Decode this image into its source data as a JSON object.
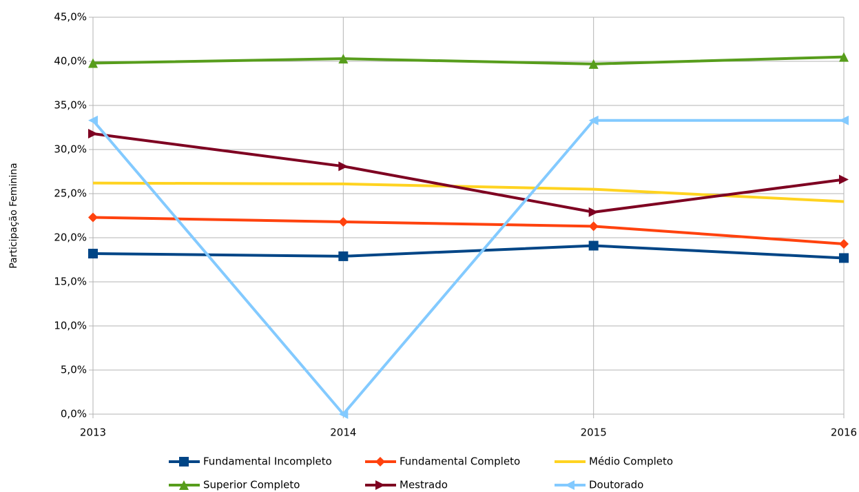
{
  "chart_data": {
    "type": "line",
    "y_label": "Participação Feminina",
    "x": [
      2013,
      2014,
      2015,
      2016
    ],
    "xlim": [
      2013,
      2016
    ],
    "xticks": [
      2013,
      2014,
      2015,
      2016
    ],
    "ylim": [
      0,
      45
    ],
    "yticks": [
      {
        "value": 0,
        "label": "0,0%"
      },
      {
        "value": 5,
        "label": "5,0%"
      },
      {
        "value": 10,
        "label": "10,0%"
      },
      {
        "value": 15,
        "label": "15,0%"
      },
      {
        "value": 20,
        "label": "20,0%"
      },
      {
        "value": 25,
        "label": "25,0%"
      },
      {
        "value": 30,
        "label": "30,0%"
      },
      {
        "value": 35,
        "label": "35,0%"
      },
      {
        "value": 40,
        "label": "40,0%"
      },
      {
        "value": 45,
        "label": "45,0%"
      }
    ],
    "grid": true,
    "legend": "bottom",
    "series": [
      {
        "name": "Fundamental Incompleto",
        "color": "#004586",
        "marker": "square",
        "values": [
          18.2,
          17.9,
          19.1,
          17.7
        ]
      },
      {
        "name": "Fundamental Completo",
        "color": "#ff420e",
        "marker": "diamond",
        "values": [
          22.3,
          21.8,
          21.3,
          19.3
        ]
      },
      {
        "name": "Médio Completo",
        "color": "#ffd320",
        "marker": "none",
        "values": [
          26.2,
          26.1,
          25.5,
          24.1
        ]
      },
      {
        "name": "Superior Completo",
        "color": "#579d1c",
        "marker": "triangle-up",
        "values": [
          39.8,
          40.3,
          39.7,
          40.5
        ]
      },
      {
        "name": "Mestrado",
        "color": "#7e0021",
        "marker": "triangle-right",
        "values": [
          31.8,
          28.1,
          22.9,
          26.6
        ]
      },
      {
        "name": "Doutorado",
        "color": "#83caff",
        "marker": "triangle-left",
        "values": [
          33.3,
          0,
          33.3,
          33.3
        ]
      }
    ]
  }
}
